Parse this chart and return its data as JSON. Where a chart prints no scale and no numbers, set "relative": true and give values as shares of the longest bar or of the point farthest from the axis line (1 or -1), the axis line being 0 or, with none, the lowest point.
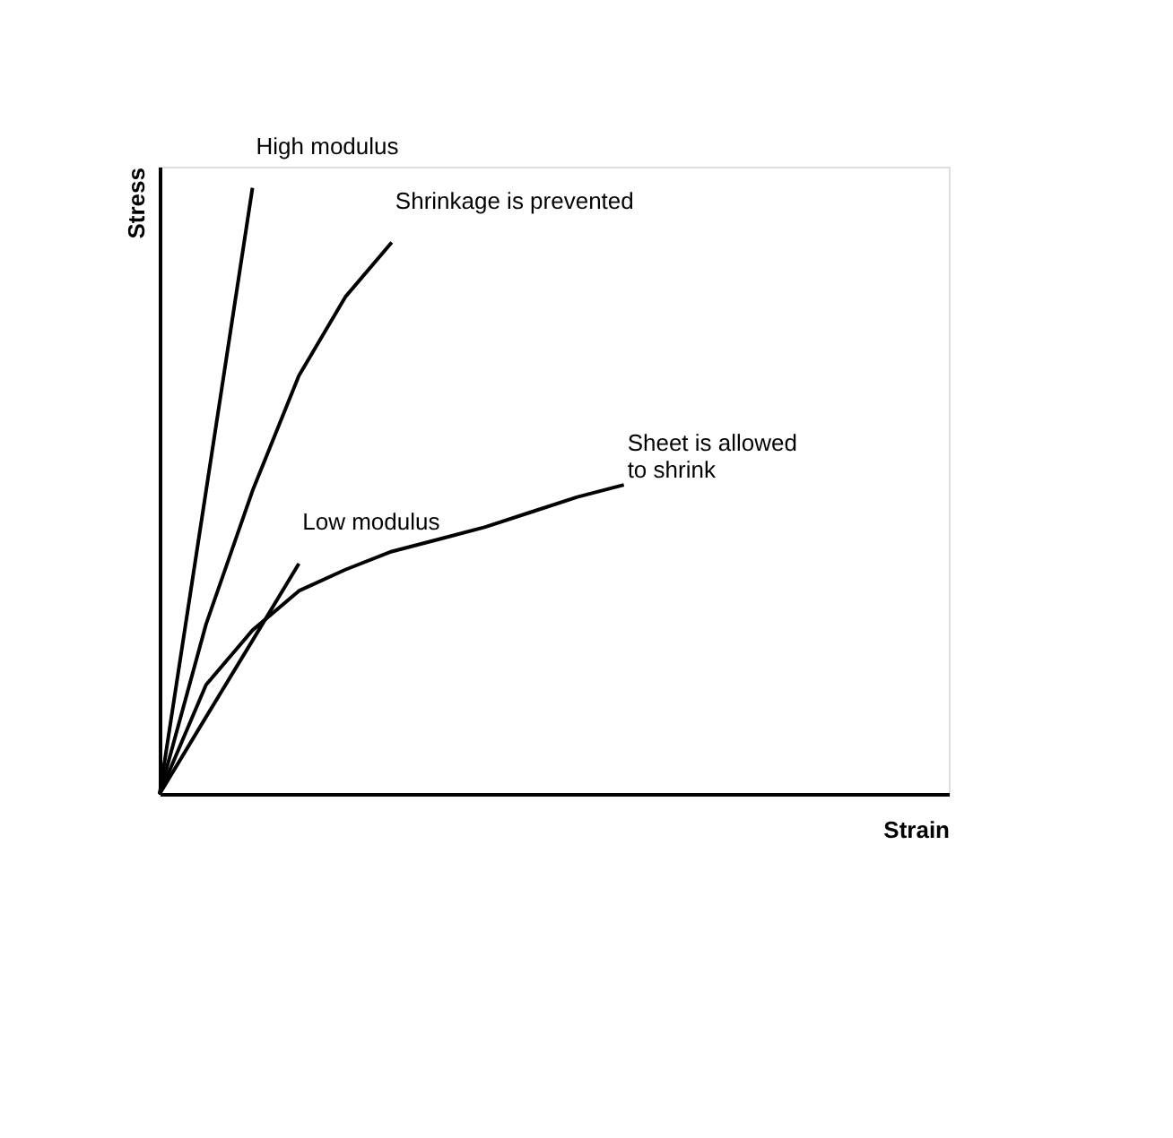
{
  "chart_data": {
    "type": "line",
    "relative": true,
    "xlabel": "Strain",
    "ylabel": "Stress",
    "grid": false,
    "legend": false,
    "marker": "none",
    "line_style": "solid",
    "categories": [
      null,
      null,
      null,
      null,
      null,
      null,
      null,
      null,
      null,
      null,
      null,
      null,
      null,
      null,
      null,
      null,
      null,
      null
    ],
    "series": [
      {
        "name": "High modulus",
        "color": "#000000",
        "values": [
          0,
          0.5,
          1,
          null,
          null,
          null,
          null,
          null,
          null,
          null,
          null,
          null,
          null,
          null,
          null,
          null,
          null,
          null
        ]
      },
      {
        "name": "Shrinkage is prevented",
        "color": "#000000",
        "values": [
          0,
          0.28,
          0.5,
          0.69,
          0.82,
          0.91,
          null,
          null,
          null,
          null,
          null,
          null,
          null,
          null,
          null,
          null,
          null,
          null
        ]
      },
      {
        "name": "Low modulus",
        "color": "#000000",
        "values": [
          0,
          0.127,
          0.253,
          0.38,
          null,
          null,
          null,
          null,
          null,
          null,
          null,
          null,
          null,
          null,
          null,
          null,
          null,
          null
        ]
      },
      {
        "name": "Sheet is allowed\nto shrink",
        "color": "#000000",
        "values": [
          0,
          0.18,
          0.27,
          0.335,
          0.37,
          0.4,
          0.42,
          0.44,
          0.465,
          0.49,
          0.51,
          null,
          null,
          null,
          null,
          null,
          null,
          null
        ]
      }
    ]
  }
}
